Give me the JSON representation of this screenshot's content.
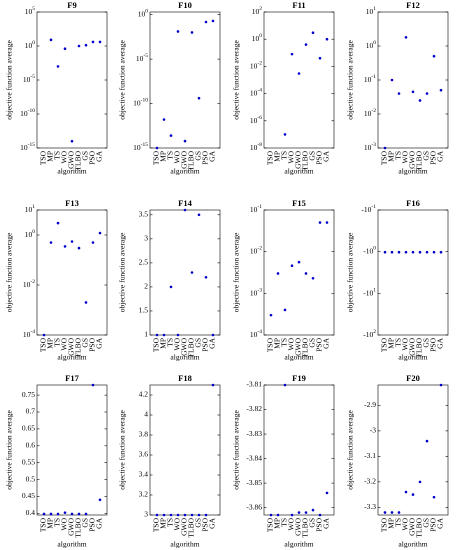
{
  "chart_data": [
    {
      "type": "scatter",
      "title": "F9",
      "xlabel": "algorithm",
      "ylabel": "objective function average",
      "color": "#0000cc",
      "log": true,
      "categories": [
        "TSO",
        "MP",
        "TS",
        "WO",
        "GWO",
        "TLBO",
        "GS",
        "PSO",
        "GA"
      ],
      "values": [
        null,
        8,
        0.001,
        0.4,
        1e-14,
        1,
        1.3,
        4,
        4
      ],
      "ylim": [
        1e-15,
        100000.0
      ],
      "yticks": [
        {
          "value": 1e-15,
          "label": "10^-15"
        },
        {
          "value": 1e-10,
          "label": "10^-10"
        },
        {
          "value": 1e-05,
          "label": "10^-5"
        },
        {
          "value": 1,
          "label": "10^0"
        },
        {
          "value": 100000.0,
          "label": "10^5"
        }
      ]
    },
    {
      "type": "scatter",
      "title": "F10",
      "xlabel": "algorithm",
      "ylabel": "objective function average",
      "color": "#0000cc",
      "log": true,
      "categories": [
        "TSO",
        "MP",
        "TS",
        "WO",
        "GWO",
        "TLBO",
        "GS",
        "PSO",
        "GA"
      ],
      "values": [
        1e-15,
        1.6e-12,
        2.5e-14,
        0.013,
        6e-15,
        0.01,
        4e-10,
        0.15,
        0.2
      ],
      "ylim": [
        1e-15,
        2
      ],
      "yticks": [
        {
          "value": 1e-15,
          "label": "10^-15"
        },
        {
          "value": 1e-10,
          "label": "10^-10"
        },
        {
          "value": 1e-05,
          "label": "10^-5"
        },
        {
          "value": 1,
          "label": "10^0"
        }
      ]
    },
    {
      "type": "scatter",
      "title": "F11",
      "xlabel": "algorithm",
      "ylabel": "objective function average",
      "color": "#0000cc",
      "log": true,
      "categories": [
        "TSO",
        "MP",
        "TS",
        "WO",
        "GWO",
        "TLBO",
        "GS",
        "PSO",
        "GA"
      ],
      "values": [
        null,
        null,
        1e-07,
        0.08,
        0.003,
        0.4,
        3,
        0.04,
        1
      ],
      "ylim": [
        1e-08,
        100
      ],
      "yticks": [
        {
          "value": 1e-08,
          "label": "10^-8"
        },
        {
          "value": 1e-06,
          "label": "10^-6"
        },
        {
          "value": 0.0001,
          "label": "10^-4"
        },
        {
          "value": 0.01,
          "label": "10^-2"
        },
        {
          "value": 1,
          "label": "10^0"
        },
        {
          "value": 100,
          "label": "10^2"
        }
      ]
    },
    {
      "type": "scatter",
      "title": "F12",
      "xlabel": "algorithm",
      "ylabel": "objective function average",
      "color": "#0000cc",
      "log": true,
      "categories": [
        "TSO",
        "MP",
        "TS",
        "WO",
        "GWO",
        "TLBO",
        "GS",
        "PSO",
        "GA"
      ],
      "values": [
        0.001,
        0.1,
        0.04,
        1.8,
        0.045,
        0.025,
        0.04,
        0.5,
        0.05
      ],
      "ylim": [
        0.001,
        10
      ],
      "yticks": [
        {
          "value": 0.001,
          "label": "10^-3"
        },
        {
          "value": 0.01,
          "label": "10^-2"
        },
        {
          "value": 0.1,
          "label": "10^-1"
        },
        {
          "value": 1,
          "label": "10^0"
        },
        {
          "value": 10,
          "label": "10^1"
        }
      ]
    },
    {
      "type": "scatter",
      "title": "F13",
      "xlabel": "algorithm",
      "ylabel": "objective function average",
      "color": "#0000cc",
      "log": true,
      "categories": [
        "TSO",
        "MP",
        "TS",
        "WO",
        "GWO",
        "TLBO",
        "GS",
        "PSO",
        "GA"
      ],
      "values": [
        0.0001,
        0.5,
        3,
        0.35,
        0.55,
        0.3,
        0.002,
        0.5,
        1.2
      ],
      "ylim": [
        0.0001,
        10
      ],
      "yticks": [
        {
          "value": 0.0001,
          "label": "10^-4"
        },
        {
          "value": 0.01,
          "label": "10^-2"
        },
        {
          "value": 1,
          "label": "10^0"
        },
        {
          "value": 10,
          "label": "10^1"
        }
      ]
    },
    {
      "type": "scatter",
      "title": "F14",
      "xlabel": "algorithm",
      "ylabel": "objective function average",
      "color": "#0000cc",
      "log": false,
      "categories": [
        "TSO",
        "MP",
        "TS",
        "WO",
        "GWO",
        "TLBO",
        "GS",
        "PSO",
        "GA"
      ],
      "values": [
        1,
        1,
        2,
        1,
        3.6,
        2.3,
        3.5,
        2.2,
        1
      ],
      "ylim": [
        1,
        3.6
      ],
      "yticks": [
        1,
        1.5,
        2,
        2.5,
        3,
        3.5
      ]
    },
    {
      "type": "scatter",
      "title": "F15",
      "xlabel": "algorithm",
      "ylabel": "objective function average",
      "color": "#0000cc",
      "log": true,
      "categories": [
        "TSO",
        "MP",
        "TS",
        "WO",
        "GWO",
        "TLBO",
        "GS",
        "PSO",
        "GA"
      ],
      "values": [
        0.0003,
        0.003,
        0.0004,
        0.0046,
        0.0056,
        0.003,
        0.0023,
        0.05,
        0.05
      ],
      "ylim": [
        0.0001,
        0.1
      ],
      "yticks": [
        {
          "value": 0.0001,
          "label": "10^-4"
        },
        {
          "value": 0.001,
          "label": "10^-3"
        },
        {
          "value": 0.01,
          "label": "10^-2"
        },
        {
          "value": 0.1,
          "label": "10^-1"
        }
      ]
    },
    {
      "type": "scatter",
      "title": "F16",
      "xlabel": "algorithm",
      "ylabel": "objective function average",
      "color": "#0000cc",
      "log": true,
      "categories": [
        "TSO",
        "MP",
        "TS",
        "WO",
        "GWO",
        "TLBO",
        "GS",
        "PSO",
        "GA"
      ],
      "values": [
        -1.03,
        -1.03,
        -1.03,
        -1.03,
        -1.03,
        -1.03,
        -1.03,
        -1.03,
        -1.03
      ],
      "ylim": [
        -100,
        -0.1
      ],
      "yticks": [
        {
          "value": -100,
          "label": "-10^2"
        },
        {
          "value": -10,
          "label": "-10^1"
        },
        {
          "value": -1,
          "label": "-10^0"
        },
        {
          "value": -0.1,
          "label": "-10^-1"
        }
      ]
    },
    {
      "type": "scatter",
      "title": "F17",
      "xlabel": "algorithm",
      "ylabel": "objective function average",
      "color": "#0000cc",
      "log": false,
      "categories": [
        "TSO",
        "MP",
        "TS",
        "WO",
        "GWO",
        "TLBO",
        "GS",
        "PSO",
        "GA"
      ],
      "values": [
        0.398,
        0.398,
        0.398,
        0.402,
        0.398,
        0.398,
        0.398,
        0.78,
        0.44
      ],
      "ylim": [
        0.395,
        0.78
      ],
      "yticks": [
        0.4,
        0.45,
        0.5,
        0.55,
        0.6,
        0.65,
        0.7,
        0.75
      ]
    },
    {
      "type": "scatter",
      "title": "F18",
      "xlabel": "algorithm",
      "ylabel": "objective function average",
      "color": "#0000cc",
      "log": false,
      "categories": [
        "TSO",
        "MP",
        "TS",
        "WO",
        "GWO",
        "TLBO",
        "GS",
        "PSO",
        "GA"
      ],
      "values": [
        3,
        3,
        3,
        3,
        3,
        3,
        3,
        3,
        4.3
      ],
      "ylim": [
        3,
        4.3
      ],
      "yticks": [
        3,
        3.2,
        3.4,
        3.6,
        3.8,
        4,
        4.2
      ]
    },
    {
      "type": "scatter",
      "title": "F19",
      "xlabel": "algorithm",
      "ylabel": "objective function average",
      "color": "#0000cc",
      "log": false,
      "categories": [
        "TSO",
        "MP",
        "TS",
        "WO",
        "GWO",
        "TLBO",
        "GS",
        "PSO",
        "GA"
      ],
      "values": [
        -3.863,
        -3.863,
        -3.81,
        -3.863,
        -3.862,
        -3.862,
        -3.861,
        -3.863,
        -3.854
      ],
      "ylim": [
        -3.863,
        -3.81
      ],
      "yticks": [
        -3.86,
        -3.85,
        -3.84,
        -3.83,
        -3.82,
        -3.81
      ]
    },
    {
      "type": "scatter",
      "title": "F20",
      "xlabel": "algorithm",
      "ylabel": "objective function average",
      "color": "#0000cc",
      "log": false,
      "categories": [
        "TSO",
        "MP",
        "TS",
        "WO",
        "GWO",
        "TLBO",
        "GS",
        "PSO",
        "GA"
      ],
      "values": [
        -3.32,
        -3.32,
        -3.32,
        -3.24,
        -3.25,
        -3.2,
        -3.04,
        -3.26,
        -2.82
      ],
      "ylim": [
        -3.33,
        -2.82
      ],
      "yticks": [
        -3.3,
        -3.2,
        -3.1,
        -3,
        -2.9
      ]
    }
  ]
}
